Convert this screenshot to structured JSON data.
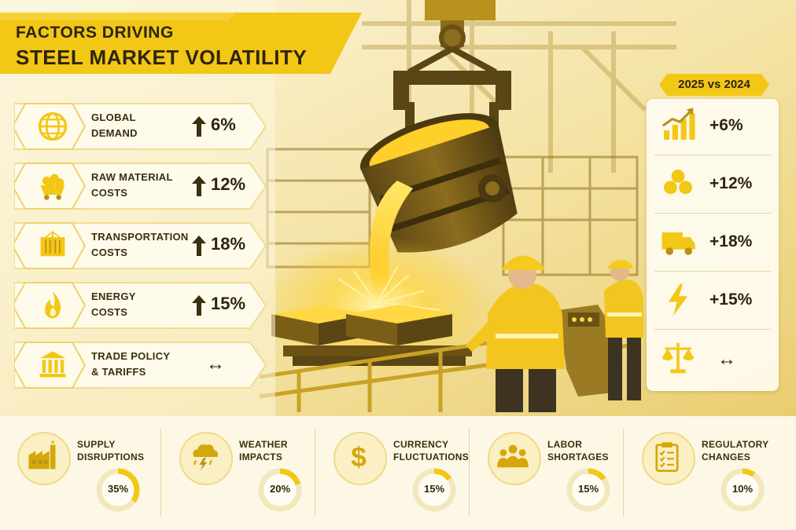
{
  "title": {
    "line1": "FACTORS DRIVING",
    "line2": "STEEL MARKET VOLATILITY"
  },
  "factors": [
    {
      "label": "GLOBAL\nDEMAND",
      "value": "6%",
      "trend": "up",
      "icon": "globe-icon"
    },
    {
      "label": "RAW MATERIAL\nCOSTS",
      "value": "12%",
      "trend": "up",
      "icon": "ore-cart-icon"
    },
    {
      "label": "TRANSPORTATION\nCOSTS",
      "value": "18%",
      "trend": "up",
      "icon": "container-icon"
    },
    {
      "label": "ENERGY\nCOSTS",
      "value": "15%",
      "trend": "up",
      "icon": "flame-icon"
    },
    {
      "label": "TRADE POLICY\n& TARIFFS",
      "value": "↔",
      "trend": "flat",
      "icon": "bank-icon"
    }
  ],
  "comparison": {
    "badge": "2025 vs 2024",
    "rows": [
      {
        "value": "+6%",
        "icon": "bar-chart-up-icon"
      },
      {
        "value": "+12%",
        "icon": "ore-pile-icon"
      },
      {
        "value": "+18%",
        "icon": "truck-icon"
      },
      {
        "value": "+15%",
        "icon": "lightning-icon"
      },
      {
        "value": "↔",
        "icon": "scales-icon"
      }
    ]
  },
  "bottom": [
    {
      "label": "SUPPLY\nDISRUPTIONS",
      "percent_text": "35%",
      "fraction": 0.35,
      "icon": "factory-icon"
    },
    {
      "label": "WEATHER\nIMPACTS",
      "percent_text": "20%",
      "fraction": 0.2,
      "icon": "storm-cloud-icon"
    },
    {
      "label": "CURRENCY\nFLUCTUATIONS",
      "percent_text": "15%",
      "fraction": 0.15,
      "icon": "dollar-icon"
    },
    {
      "label": "LABOR\nSHORTAGES",
      "percent_text": "15%",
      "fraction": 0.15,
      "icon": "people-icon"
    },
    {
      "label": "REGULATORY\nCHANGES",
      "percent_text": "10%",
      "fraction": 0.1,
      "icon": "clipboard-icon"
    }
  ],
  "colors": {
    "accent": "#f2c716",
    "accent_dark": "#d4a80c",
    "ink": "#2e250c",
    "panel": "#fffbea",
    "donut_track": "#f3e7bd"
  }
}
